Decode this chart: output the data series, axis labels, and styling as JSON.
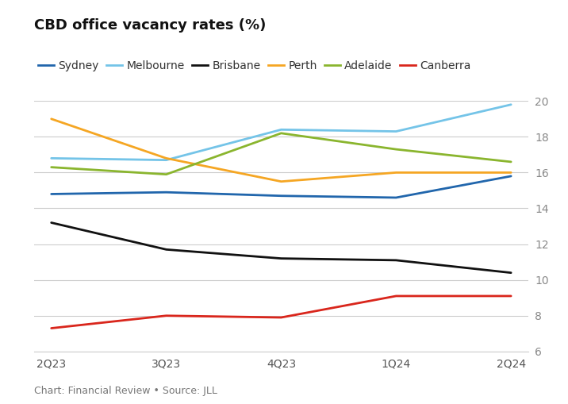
{
  "title": "CBD office vacancy rates (%)",
  "footnote": "Chart: Financial Review • Source: JLL",
  "x_labels": [
    "2Q23",
    "3Q23",
    "4Q23",
    "1Q24",
    "2Q24"
  ],
  "series": {
    "Sydney": {
      "values": [
        14.8,
        14.9,
        14.7,
        14.6,
        15.8
      ],
      "color": "#2166ac",
      "linewidth": 2.0
    },
    "Melbourne": {
      "values": [
        16.8,
        16.7,
        18.4,
        18.3,
        19.8
      ],
      "color": "#74c4e8",
      "linewidth": 2.0
    },
    "Brisbane": {
      "values": [
        13.2,
        11.7,
        11.2,
        11.1,
        10.4
      ],
      "color": "#111111",
      "linewidth": 2.0
    },
    "Perth": {
      "values": [
        19.0,
        16.8,
        15.5,
        16.0,
        16.0
      ],
      "color": "#f5a623",
      "linewidth": 2.0
    },
    "Adelaide": {
      "values": [
        16.3,
        15.9,
        18.2,
        17.3,
        16.6
      ],
      "color": "#8ab52e",
      "linewidth": 2.0
    },
    "Canberra": {
      "values": [
        7.3,
        8.0,
        7.9,
        9.1,
        9.1
      ],
      "color": "#d9261c",
      "linewidth": 2.0
    }
  },
  "ylim": [
    6,
    20
  ],
  "yticks": [
    6,
    8,
    10,
    12,
    14,
    16,
    18,
    20
  ],
  "background_color": "#ffffff",
  "grid_color": "#cccccc",
  "title_fontsize": 13,
  "legend_fontsize": 10,
  "tick_fontsize": 10,
  "footnote_fontsize": 9
}
